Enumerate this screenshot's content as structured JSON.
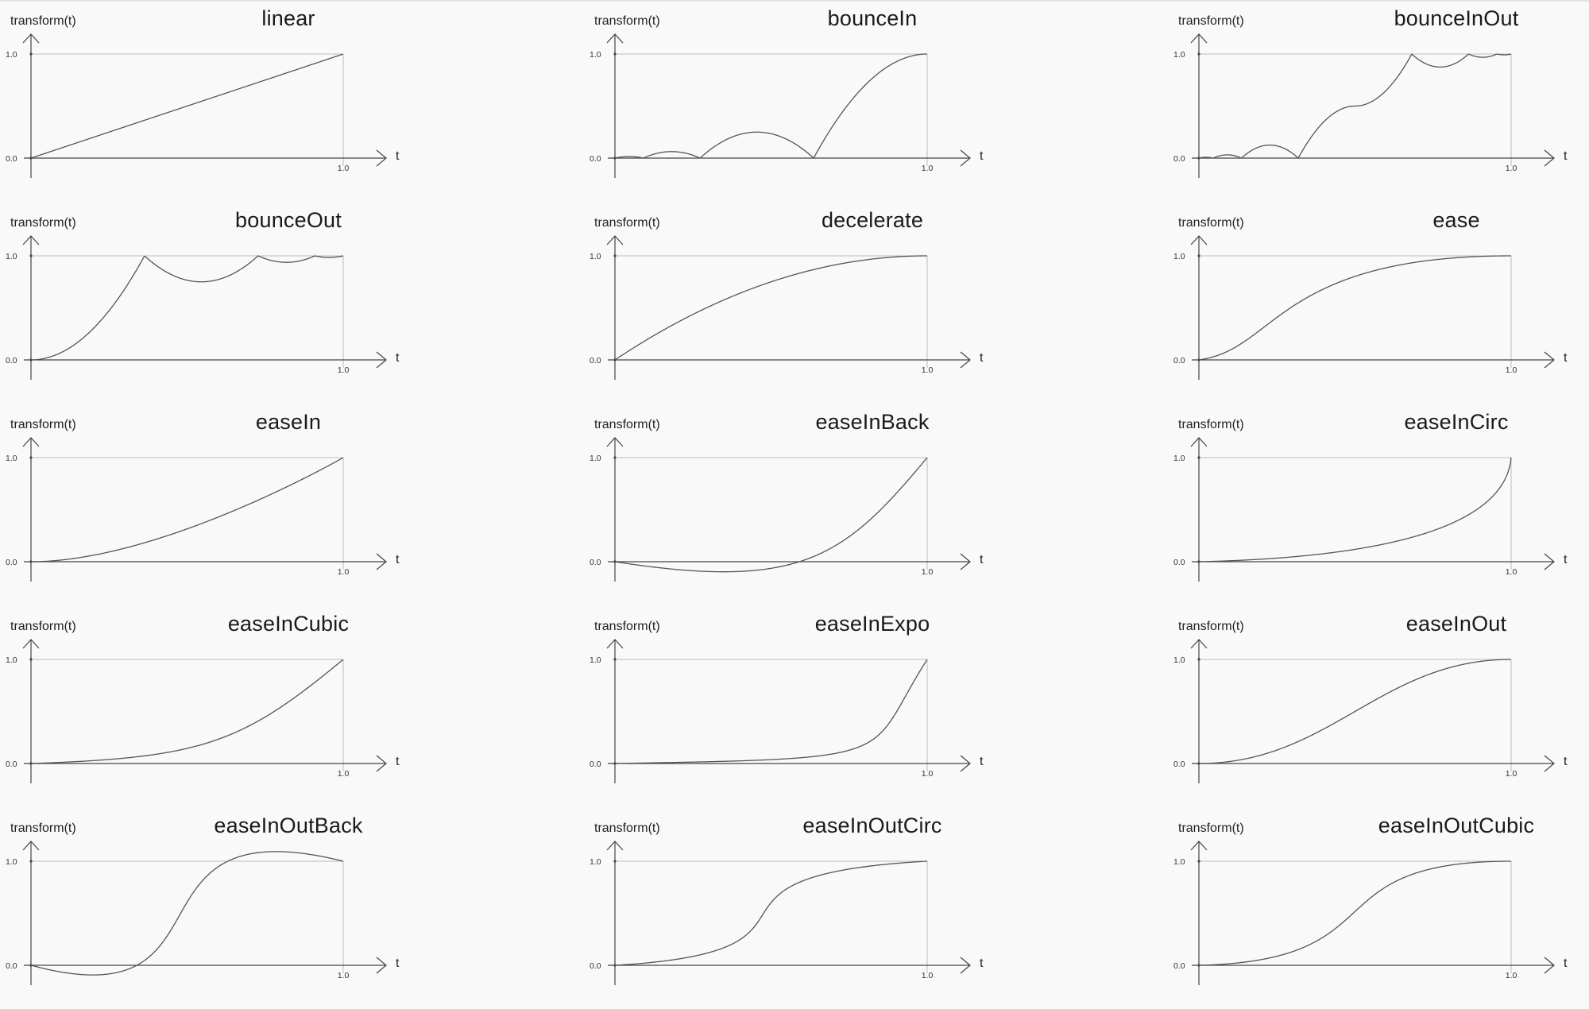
{
  "chart_data": [
    {
      "type": "line",
      "title": "linear",
      "ylabel": "transform(t)",
      "xlabel": "t",
      "yticks": [
        "0.0",
        "1.0"
      ],
      "xticks": [
        "1.0"
      ],
      "xlim": [
        0,
        1
      ],
      "ylim": [
        0,
        1
      ],
      "curve": "linear"
    },
    {
      "type": "line",
      "title": "bounceIn",
      "ylabel": "transform(t)",
      "xlabel": "t",
      "yticks": [
        "0.0",
        "1.0"
      ],
      "xticks": [
        "1.0"
      ],
      "xlim": [
        0,
        1
      ],
      "ylim": [
        0,
        1
      ],
      "curve": "bounceIn"
    },
    {
      "type": "line",
      "title": "bounceInOut",
      "ylabel": "transform(t)",
      "xlabel": "t",
      "yticks": [
        "0.0",
        "1.0"
      ],
      "xticks": [
        "1.0"
      ],
      "xlim": [
        0,
        1
      ],
      "ylim": [
        0,
        1
      ],
      "curve": "bounceInOut"
    },
    {
      "type": "line",
      "title": "bounceOut",
      "ylabel": "transform(t)",
      "xlabel": "t",
      "yticks": [
        "0.0",
        "1.0"
      ],
      "xticks": [
        "1.0"
      ],
      "xlim": [
        0,
        1
      ],
      "ylim": [
        0,
        1
      ],
      "curve": "bounceOut"
    },
    {
      "type": "line",
      "title": "decelerate",
      "ylabel": "transform(t)",
      "xlabel": "t",
      "yticks": [
        "0.0",
        "1.0"
      ],
      "xticks": [
        "1.0"
      ],
      "xlim": [
        0,
        1
      ],
      "ylim": [
        0,
        1
      ],
      "curve": "decelerate"
    },
    {
      "type": "line",
      "title": "ease",
      "ylabel": "transform(t)",
      "xlabel": "t",
      "yticks": [
        "0.0",
        "1.0"
      ],
      "xticks": [
        "1.0"
      ],
      "xlim": [
        0,
        1
      ],
      "ylim": [
        0,
        1
      ],
      "curve": "ease"
    },
    {
      "type": "line",
      "title": "easeIn",
      "ylabel": "transform(t)",
      "xlabel": "t",
      "yticks": [
        "0.0",
        "1.0"
      ],
      "xticks": [
        "1.0"
      ],
      "xlim": [
        0,
        1
      ],
      "ylim": [
        0,
        1
      ],
      "curve": "easeIn"
    },
    {
      "type": "line",
      "title": "easeInBack",
      "ylabel": "transform(t)",
      "xlabel": "t",
      "yticks": [
        "0.0",
        "1.0"
      ],
      "xticks": [
        "1.0"
      ],
      "xlim": [
        0,
        1
      ],
      "ylim": [
        0,
        1
      ],
      "curve": "easeInBack"
    },
    {
      "type": "line",
      "title": "easeInCirc",
      "ylabel": "transform(t)",
      "xlabel": "t",
      "yticks": [
        "0.0",
        "1.0"
      ],
      "xticks": [
        "1.0"
      ],
      "xlim": [
        0,
        1
      ],
      "ylim": [
        0,
        1
      ],
      "curve": "easeInCirc"
    },
    {
      "type": "line",
      "title": "easeInCubic",
      "ylabel": "transform(t)",
      "xlabel": "t",
      "yticks": [
        "0.0",
        "1.0"
      ],
      "xticks": [
        "1.0"
      ],
      "xlim": [
        0,
        1
      ],
      "ylim": [
        0,
        1
      ],
      "curve": "easeInCubic"
    },
    {
      "type": "line",
      "title": "easeInExpo",
      "ylabel": "transform(t)",
      "xlabel": "t",
      "yticks": [
        "0.0",
        "1.0"
      ],
      "xticks": [
        "1.0"
      ],
      "xlim": [
        0,
        1
      ],
      "ylim": [
        0,
        1
      ],
      "curve": "easeInExpo"
    },
    {
      "type": "line",
      "title": "easeInOut",
      "ylabel": "transform(t)",
      "xlabel": "t",
      "yticks": [
        "0.0",
        "1.0"
      ],
      "xticks": [
        "1.0"
      ],
      "xlim": [
        0,
        1
      ],
      "ylim": [
        0,
        1
      ],
      "curve": "easeInOut"
    },
    {
      "type": "line",
      "title": "easeInOutBack",
      "ylabel": "transform(t)",
      "xlabel": "t",
      "yticks": [
        "0.0",
        "1.0"
      ],
      "xticks": [
        "1.0"
      ],
      "xlim": [
        0,
        1
      ],
      "ylim": [
        0,
        1
      ],
      "curve": "easeInOutBack"
    },
    {
      "type": "line",
      "title": "easeInOutCirc",
      "ylabel": "transform(t)",
      "xlabel": "t",
      "yticks": [
        "0.0",
        "1.0"
      ],
      "xticks": [
        "1.0"
      ],
      "xlim": [
        0,
        1
      ],
      "ylim": [
        0,
        1
      ],
      "curve": "easeInOutCirc"
    },
    {
      "type": "line",
      "title": "easeInOutCubic",
      "ylabel": "transform(t)",
      "xlabel": "t",
      "yticks": [
        "0.0",
        "1.0"
      ],
      "xticks": [
        "1.0"
      ],
      "xlim": [
        0,
        1
      ],
      "ylim": [
        0,
        1
      ],
      "curve": "easeInOutCubic"
    }
  ],
  "colors": {
    "background": "#f9f9f9",
    "curve": "#555555",
    "axis": "#444444",
    "guide": "#bdbdbd",
    "text": "#1a1a1a"
  }
}
